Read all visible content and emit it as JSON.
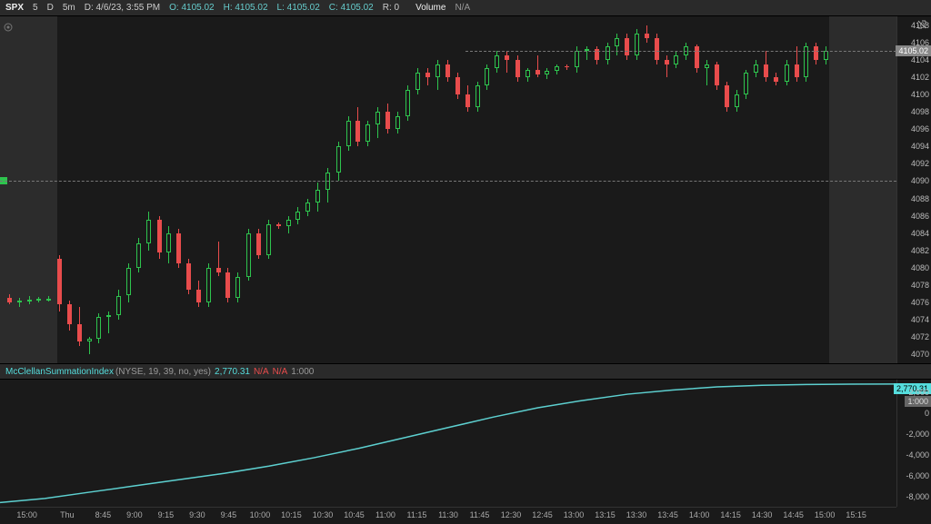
{
  "header": {
    "symbol": "SPX",
    "period1": "5",
    "period2": "D",
    "interval": "5m",
    "date": "D: 4/6/23, 3:55 PM",
    "open": "O: 4105.02",
    "high": "H: 4105.02",
    "low": "L: 4105.02",
    "close": "C: 4105.02",
    "r": "R: 0",
    "volume_label": "Volume",
    "volume_val": "N/A"
  },
  "main_chart": {
    "price_min": 4069,
    "price_max": 4109,
    "yticks": [
      4070,
      4072,
      4074,
      4076,
      4078,
      4080,
      4082,
      4084,
      4086,
      4088,
      4090,
      4092,
      4094,
      4096,
      4098,
      4100,
      4102,
      4104,
      4106,
      4108
    ],
    "current_price": 4105.02,
    "prev_close_line": 4090.0,
    "shade_left": {
      "start_pct": 0,
      "end_pct": 6.4
    },
    "shade_right": {
      "start_pct": 92.5,
      "end_pct": 100
    },
    "up_color": "#2ec44e",
    "down_color": "#e84c4c",
    "candles": [
      {
        "x": 0.8,
        "o": 4076.5,
        "h": 4077.0,
        "l": 4075.8,
        "c": 4076.0
      },
      {
        "x": 1.9,
        "o": 4076.0,
        "h": 4076.5,
        "l": 4075.5,
        "c": 4076.2
      },
      {
        "x": 3.0,
        "o": 4076.2,
        "h": 4076.8,
        "l": 4075.8,
        "c": 4076.3
      },
      {
        "x": 4.1,
        "o": 4076.3,
        "h": 4076.6,
        "l": 4076.0,
        "c": 4076.4
      },
      {
        "x": 5.2,
        "o": 4076.4,
        "h": 4076.7,
        "l": 4076.1,
        "c": 4076.4
      },
      {
        "x": 6.4,
        "o": 4081.0,
        "h": 4081.5,
        "l": 4075.0,
        "c": 4075.8
      },
      {
        "x": 7.5,
        "o": 4075.8,
        "h": 4076.2,
        "l": 4072.8,
        "c": 4073.5
      },
      {
        "x": 8.6,
        "o": 4073.5,
        "h": 4075.5,
        "l": 4071.0,
        "c": 4071.5
      },
      {
        "x": 9.7,
        "o": 4071.5,
        "h": 4072.0,
        "l": 4070.0,
        "c": 4071.8
      },
      {
        "x": 10.8,
        "o": 4071.8,
        "h": 4074.8,
        "l": 4071.3,
        "c": 4074.3
      },
      {
        "x": 11.9,
        "o": 4074.3,
        "h": 4075.0,
        "l": 4072.5,
        "c": 4074.6
      },
      {
        "x": 13.0,
        "o": 4074.6,
        "h": 4077.5,
        "l": 4074.0,
        "c": 4076.8
      },
      {
        "x": 14.1,
        "o": 4076.8,
        "h": 4080.5,
        "l": 4076.0,
        "c": 4080.0
      },
      {
        "x": 15.2,
        "o": 4080.0,
        "h": 4083.5,
        "l": 4079.5,
        "c": 4082.8
      },
      {
        "x": 16.3,
        "o": 4082.8,
        "h": 4086.5,
        "l": 4082.0,
        "c": 4085.5
      },
      {
        "x": 17.5,
        "o": 4085.5,
        "h": 4086.0,
        "l": 4081.0,
        "c": 4081.8
      },
      {
        "x": 18.6,
        "o": 4081.8,
        "h": 4084.8,
        "l": 4080.5,
        "c": 4084.0
      },
      {
        "x": 19.7,
        "o": 4084.0,
        "h": 4084.5,
        "l": 4080.0,
        "c": 4080.5
      },
      {
        "x": 20.8,
        "o": 4080.5,
        "h": 4081.0,
        "l": 4077.0,
        "c": 4077.5
      },
      {
        "x": 21.9,
        "o": 4077.5,
        "h": 4078.5,
        "l": 4075.5,
        "c": 4076.0
      },
      {
        "x": 23.0,
        "o": 4076.0,
        "h": 4080.5,
        "l": 4075.5,
        "c": 4080.0
      },
      {
        "x": 24.1,
        "o": 4080.0,
        "h": 4083.0,
        "l": 4079.0,
        "c": 4079.5
      },
      {
        "x": 25.2,
        "o": 4079.5,
        "h": 4080.0,
        "l": 4076.0,
        "c": 4076.5
      },
      {
        "x": 26.3,
        "o": 4076.5,
        "h": 4079.5,
        "l": 4076.0,
        "c": 4079.0
      },
      {
        "x": 27.5,
        "o": 4079.0,
        "h": 4084.5,
        "l": 4078.5,
        "c": 4084.0
      },
      {
        "x": 28.6,
        "o": 4084.0,
        "h": 4084.5,
        "l": 4081.0,
        "c": 4081.5
      },
      {
        "x": 29.7,
        "o": 4081.5,
        "h": 4085.5,
        "l": 4081.0,
        "c": 4085.0
      },
      {
        "x": 30.8,
        "o": 4085.0,
        "h": 4085.2,
        "l": 4084.5,
        "c": 4084.8
      },
      {
        "x": 31.9,
        "o": 4084.8,
        "h": 4086.0,
        "l": 4084.0,
        "c": 4085.5
      },
      {
        "x": 33.0,
        "o": 4085.5,
        "h": 4087.0,
        "l": 4085.0,
        "c": 4086.5
      },
      {
        "x": 34.1,
        "o": 4086.5,
        "h": 4088.0,
        "l": 4086.0,
        "c": 4087.5
      },
      {
        "x": 35.2,
        "o": 4087.5,
        "h": 4089.8,
        "l": 4086.5,
        "c": 4089.0
      },
      {
        "x": 36.3,
        "o": 4089.0,
        "h": 4091.5,
        "l": 4087.5,
        "c": 4091.0
      },
      {
        "x": 37.5,
        "o": 4091.0,
        "h": 4094.5,
        "l": 4090.0,
        "c": 4094.0
      },
      {
        "x": 38.6,
        "o": 4094.0,
        "h": 4097.5,
        "l": 4093.5,
        "c": 4097.0
      },
      {
        "x": 39.7,
        "o": 4097.0,
        "h": 4098.5,
        "l": 4094.0,
        "c": 4094.5
      },
      {
        "x": 40.8,
        "o": 4094.5,
        "h": 4097.0,
        "l": 4094.0,
        "c": 4096.5
      },
      {
        "x": 41.9,
        "o": 4096.5,
        "h": 4098.5,
        "l": 4095.0,
        "c": 4098.0
      },
      {
        "x": 43.0,
        "o": 4098.0,
        "h": 4099.0,
        "l": 4095.5,
        "c": 4096.0
      },
      {
        "x": 44.1,
        "o": 4096.0,
        "h": 4098.0,
        "l": 4095.5,
        "c": 4097.5
      },
      {
        "x": 45.2,
        "o": 4097.5,
        "h": 4101.0,
        "l": 4097.0,
        "c": 4100.5
      },
      {
        "x": 46.3,
        "o": 4100.5,
        "h": 4103.0,
        "l": 4100.0,
        "c": 4102.5
      },
      {
        "x": 47.5,
        "o": 4102.5,
        "h": 4103.0,
        "l": 4101.0,
        "c": 4102.0
      },
      {
        "x": 48.6,
        "o": 4102.0,
        "h": 4104.0,
        "l": 4100.5,
        "c": 4103.5
      },
      {
        "x": 49.7,
        "o": 4103.5,
        "h": 4104.0,
        "l": 4101.5,
        "c": 4102.0
      },
      {
        "x": 50.8,
        "o": 4102.0,
        "h": 4102.5,
        "l": 4099.5,
        "c": 4100.0
      },
      {
        "x": 51.9,
        "o": 4100.0,
        "h": 4101.0,
        "l": 4098.0,
        "c": 4098.5
      },
      {
        "x": 53.0,
        "o": 4098.5,
        "h": 4101.5,
        "l": 4098.0,
        "c": 4101.0
      },
      {
        "x": 54.1,
        "o": 4101.0,
        "h": 4103.5,
        "l": 4100.5,
        "c": 4103.0
      },
      {
        "x": 55.2,
        "o": 4103.0,
        "h": 4105.0,
        "l": 4102.5,
        "c": 4104.5
      },
      {
        "x": 56.3,
        "o": 4104.5,
        "h": 4105.0,
        "l": 4102.5,
        "c": 4104.0
      },
      {
        "x": 57.5,
        "o": 4104.0,
        "h": 4104.5,
        "l": 4101.5,
        "c": 4102.0
      },
      {
        "x": 58.6,
        "o": 4102.0,
        "h": 4103.0,
        "l": 4101.5,
        "c": 4102.8
      },
      {
        "x": 59.7,
        "o": 4102.8,
        "h": 4104.5,
        "l": 4102.0,
        "c": 4102.3
      },
      {
        "x": 60.8,
        "o": 4102.3,
        "h": 4103.0,
        "l": 4101.8,
        "c": 4102.7
      },
      {
        "x": 61.9,
        "o": 4102.7,
        "h": 4103.5,
        "l": 4102.3,
        "c": 4103.2
      },
      {
        "x": 63.0,
        "o": 4103.2,
        "h": 4103.4,
        "l": 4102.8,
        "c": 4103.1
      },
      {
        "x": 64.1,
        "o": 4103.1,
        "h": 4105.5,
        "l": 4102.5,
        "c": 4105.0
      },
      {
        "x": 65.2,
        "o": 4105.0,
        "h": 4105.5,
        "l": 4104.0,
        "c": 4105.2
      },
      {
        "x": 66.3,
        "o": 4105.2,
        "h": 4105.5,
        "l": 4103.5,
        "c": 4104.0
      },
      {
        "x": 67.5,
        "o": 4104.0,
        "h": 4106.0,
        "l": 4103.5,
        "c": 4105.5
      },
      {
        "x": 68.6,
        "o": 4105.5,
        "h": 4107.0,
        "l": 4104.5,
        "c": 4106.5
      },
      {
        "x": 69.7,
        "o": 4106.5,
        "h": 4107.0,
        "l": 4104.0,
        "c": 4104.5
      },
      {
        "x": 70.8,
        "o": 4104.5,
        "h": 4107.5,
        "l": 4104.0,
        "c": 4107.0
      },
      {
        "x": 71.9,
        "o": 4107.0,
        "h": 4108.0,
        "l": 4106.0,
        "c": 4106.5
      },
      {
        "x": 73.0,
        "o": 4106.5,
        "h": 4107.0,
        "l": 4103.5,
        "c": 4104.0
      },
      {
        "x": 74.1,
        "o": 4104.0,
        "h": 4104.5,
        "l": 4102.0,
        "c": 4103.5
      },
      {
        "x": 75.2,
        "o": 4103.5,
        "h": 4105.0,
        "l": 4103.0,
        "c": 4104.5
      },
      {
        "x": 76.3,
        "o": 4104.5,
        "h": 4106.0,
        "l": 4104.0,
        "c": 4105.5
      },
      {
        "x": 77.5,
        "o": 4105.5,
        "h": 4105.8,
        "l": 4102.5,
        "c": 4103.0
      },
      {
        "x": 78.6,
        "o": 4103.0,
        "h": 4104.0,
        "l": 4101.0,
        "c": 4103.5
      },
      {
        "x": 79.7,
        "o": 4103.5,
        "h": 4103.8,
        "l": 4100.5,
        "c": 4101.0
      },
      {
        "x": 80.8,
        "o": 4101.0,
        "h": 4101.5,
        "l": 4098.0,
        "c": 4098.5
      },
      {
        "x": 81.9,
        "o": 4098.5,
        "h": 4100.5,
        "l": 4098.0,
        "c": 4100.0
      },
      {
        "x": 83.0,
        "o": 4100.0,
        "h": 4102.8,
        "l": 4099.5,
        "c": 4102.5
      },
      {
        "x": 84.1,
        "o": 4102.5,
        "h": 4104.0,
        "l": 4102.0,
        "c": 4103.5
      },
      {
        "x": 85.2,
        "o": 4103.5,
        "h": 4105.0,
        "l": 4101.5,
        "c": 4102.0
      },
      {
        "x": 86.3,
        "o": 4102.0,
        "h": 4102.5,
        "l": 4101.0,
        "c": 4101.5
      },
      {
        "x": 87.5,
        "o": 4101.5,
        "h": 4104.0,
        "l": 4101.0,
        "c": 4103.5
      },
      {
        "x": 88.6,
        "o": 4103.5,
        "h": 4105.5,
        "l": 4101.5,
        "c": 4102.0
      },
      {
        "x": 89.7,
        "o": 4102.0,
        "h": 4106.0,
        "l": 4101.5,
        "c": 4105.5
      },
      {
        "x": 90.8,
        "o": 4105.5,
        "h": 4106.0,
        "l": 4103.5,
        "c": 4104.0
      },
      {
        "x": 91.9,
        "o": 4104.0,
        "h": 4105.5,
        "l": 4103.5,
        "c": 4105.0
      }
    ]
  },
  "indicator": {
    "name": "McClellanSummationIndex",
    "params": "(NYSE, 19, 39, no, yes)",
    "value": "2,770.31",
    "na1": "N/A",
    "na2": "N/A",
    "extra": "1:000",
    "y_min": -9000,
    "y_max": 3200,
    "yticks": [
      {
        "v": 2000,
        "label": "2,000"
      },
      {
        "v": 0,
        "label": "0"
      },
      {
        "v": -2000,
        "label": "-2,000"
      },
      {
        "v": -4000,
        "label": "-4,000"
      },
      {
        "v": -6000,
        "label": "-6,000"
      },
      {
        "v": -8000,
        "label": "-8,000"
      }
    ],
    "current_label": "2,770.31",
    "extra_label": "1:000",
    "line_color": "#5dd0d0",
    "points": [
      {
        "x": 0,
        "y": -8600
      },
      {
        "x": 5,
        "y": -8200
      },
      {
        "x": 10,
        "y": -7600
      },
      {
        "x": 15,
        "y": -7000
      },
      {
        "x": 20,
        "y": -6400
      },
      {
        "x": 25,
        "y": -5800
      },
      {
        "x": 30,
        "y": -5100
      },
      {
        "x": 35,
        "y": -4300
      },
      {
        "x": 40,
        "y": -3400
      },
      {
        "x": 45,
        "y": -2400
      },
      {
        "x": 50,
        "y": -1400
      },
      {
        "x": 55,
        "y": -400
      },
      {
        "x": 60,
        "y": 500
      },
      {
        "x": 65,
        "y": 1200
      },
      {
        "x": 70,
        "y": 1800
      },
      {
        "x": 75,
        "y": 2200
      },
      {
        "x": 80,
        "y": 2500
      },
      {
        "x": 85,
        "y": 2650
      },
      {
        "x": 90,
        "y": 2730
      },
      {
        "x": 95,
        "y": 2760
      },
      {
        "x": 100,
        "y": 2770
      }
    ]
  },
  "x_axis": {
    "ticks": [
      {
        "x": 3.0,
        "label": "15:00"
      },
      {
        "x": 7.5,
        "label": "Thu"
      },
      {
        "x": 11.5,
        "label": "8:45"
      },
      {
        "x": 15.0,
        "label": "9:00"
      },
      {
        "x": 18.5,
        "label": "9:15"
      },
      {
        "x": 22.0,
        "label": "9:30"
      },
      {
        "x": 25.5,
        "label": "9:45"
      },
      {
        "x": 29.0,
        "label": "10:00"
      },
      {
        "x": 32.5,
        "label": "10:15"
      },
      {
        "x": 36.0,
        "label": "10:30"
      },
      {
        "x": 39.5,
        "label": "10:45"
      },
      {
        "x": 43.0,
        "label": "11:00"
      },
      {
        "x": 46.5,
        "label": "11:15"
      },
      {
        "x": 50.0,
        "label": "11:30"
      },
      {
        "x": 53.5,
        "label": "11:45"
      },
      {
        "x": 57.0,
        "label": "12:30"
      },
      {
        "x": 60.5,
        "label": "12:45"
      },
      {
        "x": 64.0,
        "label": "13:00"
      },
      {
        "x": 67.5,
        "label": "13:15"
      },
      {
        "x": 71.0,
        "label": "13:30"
      },
      {
        "x": 74.5,
        "label": "13:45"
      },
      {
        "x": 78.0,
        "label": "14:00"
      },
      {
        "x": 81.5,
        "label": "14:15"
      },
      {
        "x": 85.0,
        "label": "14:30"
      },
      {
        "x": 88.5,
        "label": "14:45"
      },
      {
        "x": 92.0,
        "label": "15:00"
      },
      {
        "x": 95.5,
        "label": "15:15"
      }
    ]
  }
}
